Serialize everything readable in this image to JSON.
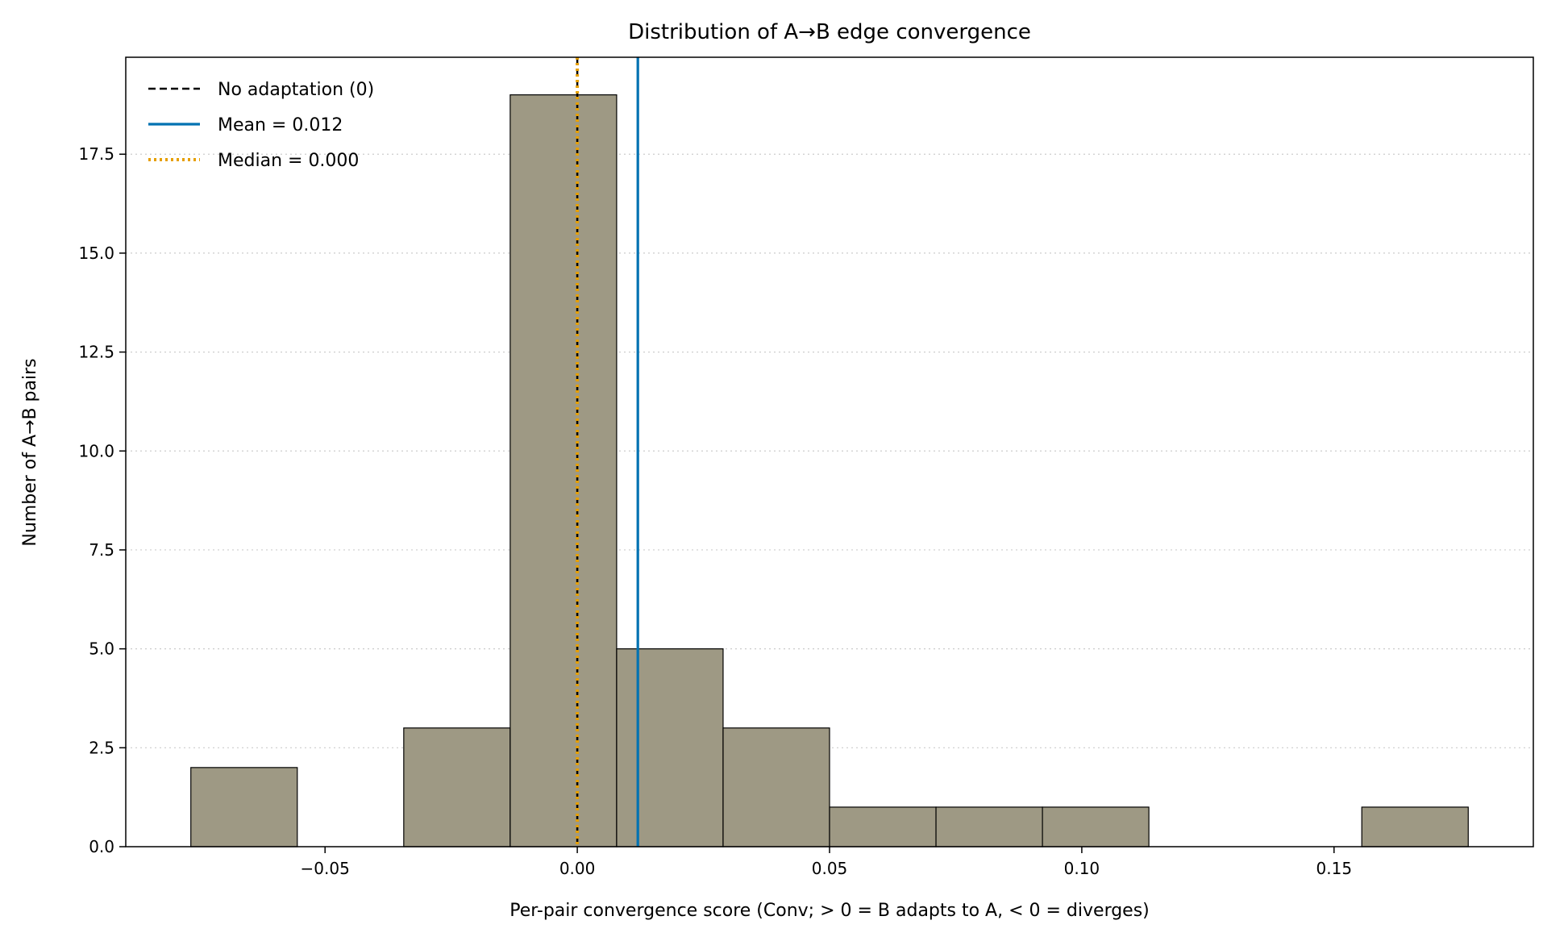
{
  "chart_data": {
    "type": "bar",
    "title": "Distribution of A→B edge convergence",
    "xlabel": "Per-pair convergence score (Conv; > 0 = B adapts to A, < 0 = diverges)",
    "ylabel": "Number of A→B pairs",
    "xlim": [
      -0.0895,
      0.1895
    ],
    "ylim": [
      0,
      19.95
    ],
    "bins": [
      {
        "x0": -0.0766,
        "x1": -0.0555,
        "count": 2
      },
      {
        "x0": -0.0555,
        "x1": -0.0344,
        "count": 0
      },
      {
        "x0": -0.0344,
        "x1": -0.0133,
        "count": 3
      },
      {
        "x0": -0.0133,
        "x1": 0.0078,
        "count": 19
      },
      {
        "x0": 0.0078,
        "x1": 0.0289,
        "count": 5
      },
      {
        "x0": 0.0289,
        "x1": 0.05,
        "count": 3
      },
      {
        "x0": 0.05,
        "x1": 0.0711,
        "count": 1
      },
      {
        "x0": 0.0711,
        "x1": 0.0922,
        "count": 1
      },
      {
        "x0": 0.0922,
        "x1": 0.1133,
        "count": 1
      },
      {
        "x0": 0.1133,
        "x1": 0.1344,
        "count": 0
      },
      {
        "x0": 0.1344,
        "x1": 0.1555,
        "count": 0
      },
      {
        "x0": 0.1555,
        "x1": 0.1766,
        "count": 1
      }
    ],
    "bar_color": "#9e9984",
    "xticks": [
      {
        "value": -0.05,
        "label": "−0.05"
      },
      {
        "value": 0.0,
        "label": "0.00"
      },
      {
        "value": 0.05,
        "label": "0.05"
      },
      {
        "value": 0.1,
        "label": "0.10"
      },
      {
        "value": 0.15,
        "label": "0.15"
      }
    ],
    "yticks": [
      {
        "value": 0.0,
        "label": "0.0"
      },
      {
        "value": 2.5,
        "label": "2.5"
      },
      {
        "value": 5.0,
        "label": "5.0"
      },
      {
        "value": 7.5,
        "label": "7.5"
      },
      {
        "value": 10.0,
        "label": "10.0"
      },
      {
        "value": 12.5,
        "label": "12.5"
      },
      {
        "value": 15.0,
        "label": "15.0"
      },
      {
        "value": 17.5,
        "label": "17.5"
      }
    ],
    "grid": "y-dotted",
    "reference_lines": [
      {
        "name": "No adaptation (0)",
        "x": 0.0,
        "color": "#000000",
        "style": "dashed"
      },
      {
        "name": "Mean = 0.012",
        "x": 0.012,
        "color": "#0072b2",
        "style": "solid"
      },
      {
        "name": "Median = 0.000",
        "x": 0.0,
        "color": "#e69f00",
        "style": "dotted"
      }
    ],
    "legend_placement": "top-left"
  }
}
